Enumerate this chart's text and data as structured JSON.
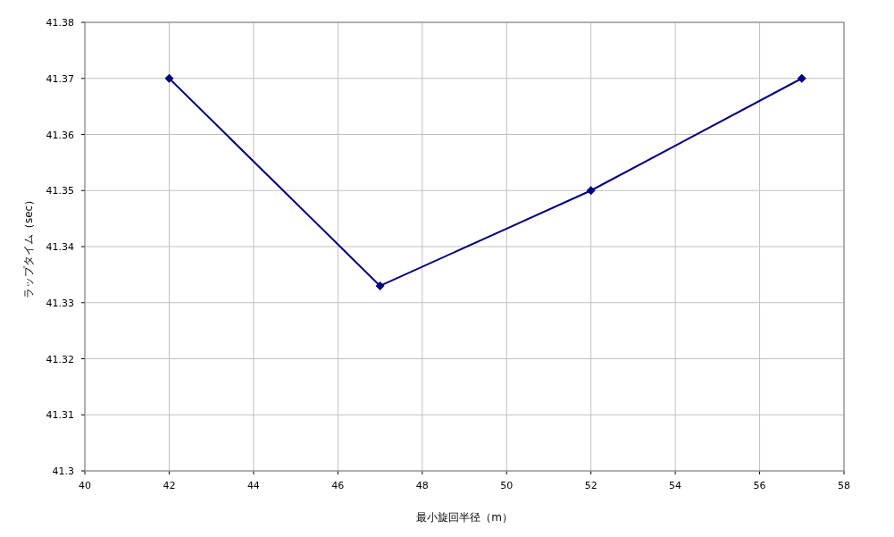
{
  "chart_data": {
    "type": "line",
    "xlabel": "最小旋回半径（m）",
    "ylabel": "ラップタイム（sec）",
    "x": [
      42,
      47,
      52,
      57
    ],
    "series": [
      {
        "color": "#000080",
        "values": [
          41.37,
          41.333,
          41.35,
          41.37
        ]
      }
    ],
    "xlim": [
      40,
      58
    ],
    "xticks": [
      40,
      42,
      44,
      46,
      48,
      50,
      52,
      54,
      56,
      58
    ],
    "ylim": [
      41.3,
      41.38
    ],
    "yticks": [
      41.3,
      41.31,
      41.32,
      41.33,
      41.34,
      41.35,
      41.36,
      41.37,
      41.38
    ],
    "grid": true,
    "marker": "diamond",
    "line_style": "solid"
  }
}
